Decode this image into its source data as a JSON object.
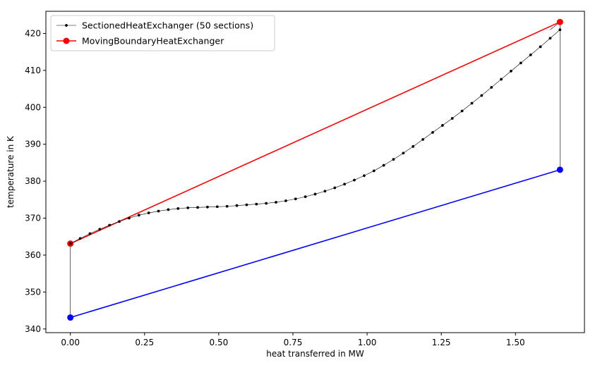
{
  "chart_data": {
    "type": "line",
    "xlabel": "heat transferred in MW",
    "ylabel": "temperature in K",
    "xlim": [
      -0.0825,
      1.7325
    ],
    "ylim": [
      339,
      426
    ],
    "xticks": [
      0.0,
      0.25,
      0.5,
      0.75,
      1.0,
      1.25,
      1.5
    ],
    "xtick_labels": [
      "0.00",
      "0.25",
      "0.50",
      "0.75",
      "1.00",
      "1.25",
      "1.50"
    ],
    "yticks": [
      340,
      350,
      360,
      370,
      380,
      390,
      400,
      410,
      420
    ],
    "ytick_labels": [
      "340",
      "350",
      "360",
      "370",
      "380",
      "390",
      "400",
      "410",
      "420"
    ],
    "grid": false,
    "legend_position": "top-left",
    "legend": [
      {
        "label": "SectionedHeatExchanger (50 sections)",
        "color": "#000000",
        "marker": "small-dot",
        "line_width": "thin"
      },
      {
        "label": "MovingBoundaryHeatExchanger",
        "color": "#ff0000",
        "marker": "circle",
        "line_width": "normal"
      }
    ],
    "series": [
      {
        "name": "SectionedHeatExchanger (50 sections)",
        "color": "#000000",
        "style": "thin-line-dots",
        "x": [
          0.0,
          0.033,
          0.066,
          0.099,
          0.132,
          0.165,
          0.198,
          0.231,
          0.264,
          0.297,
          0.33,
          0.363,
          0.396,
          0.429,
          0.462,
          0.495,
          0.528,
          0.561,
          0.594,
          0.627,
          0.66,
          0.693,
          0.726,
          0.759,
          0.792,
          0.825,
          0.858,
          0.891,
          0.924,
          0.957,
          0.99,
          1.023,
          1.056,
          1.089,
          1.122,
          1.155,
          1.188,
          1.221,
          1.254,
          1.287,
          1.32,
          1.353,
          1.386,
          1.419,
          1.452,
          1.485,
          1.518,
          1.551,
          1.584,
          1.617,
          1.65
        ],
        "y": [
          363.1,
          364.5,
          365.8,
          367.0,
          368.1,
          369.1,
          370.0,
          370.8,
          371.4,
          371.9,
          372.3,
          372.6,
          372.8,
          372.9,
          373.0,
          373.1,
          373.2,
          373.4,
          373.6,
          373.8,
          374.0,
          374.3,
          374.7,
          375.2,
          375.8,
          376.5,
          377.3,
          378.2,
          379.2,
          380.3,
          381.5,
          382.8,
          384.3,
          385.9,
          387.6,
          389.4,
          391.3,
          393.2,
          395.1,
          397.0,
          399.0,
          401.1,
          403.2,
          405.4,
          407.6,
          409.8,
          412.0,
          414.2,
          416.4,
          418.7,
          421.0
        ]
      },
      {
        "name": "MovingBoundaryHeatExchanger",
        "color": "#ff0000",
        "style": "line-circles",
        "x": [
          0.0,
          1.65
        ],
        "y": [
          363.1,
          423.1
        ]
      },
      {
        "color": "#0000ff",
        "style": "line-circles",
        "x": [
          0.0,
          1.65
        ],
        "y": [
          343.1,
          383.1
        ]
      },
      {
        "color": "#000000",
        "style": "thin-line",
        "x": [
          0.0,
          0.0
        ],
        "y": [
          343.1,
          363.1
        ]
      },
      {
        "color": "#000000",
        "style": "thin-line",
        "x": [
          1.65,
          1.65
        ],
        "y": [
          383.1,
          423.1
        ]
      },
      {
        "color": "#000000",
        "style": "thin-line",
        "x": [
          1.617,
          1.65
        ],
        "y": [
          421.0,
          423.1
        ]
      }
    ]
  }
}
